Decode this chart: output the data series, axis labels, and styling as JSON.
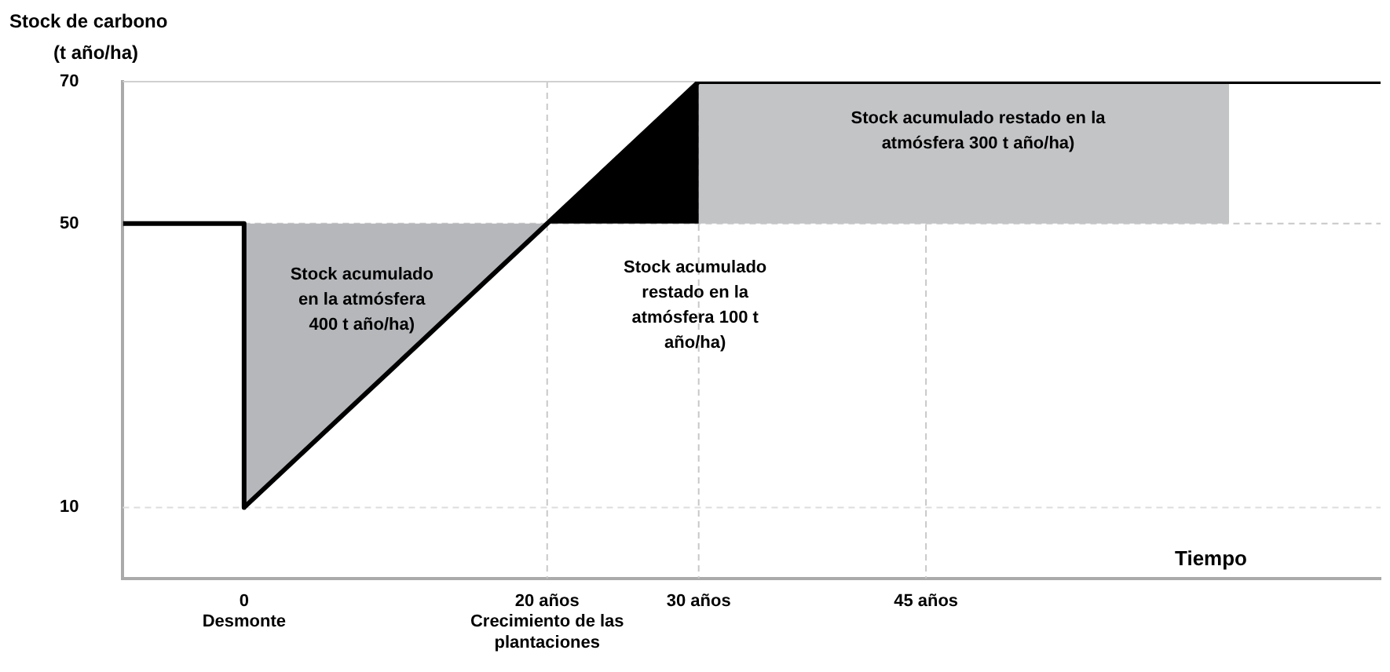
{
  "chart_data": {
    "type": "line",
    "ylabel": "Stock de carbono\n(t año/ha)",
    "xlabel": "Tiempo",
    "xlim": [
      -8,
      75
    ],
    "xticks": [
      {
        "value": 0,
        "label": "0\nDesmonte"
      },
      {
        "value": 20,
        "label": "20 años\nCrecimiento de las\nplantaciones"
      },
      {
        "value": 30,
        "label": "30 años"
      },
      {
        "value": 45,
        "label": "45 años"
      }
    ],
    "ylim": [
      0,
      70
    ],
    "yticks": [
      10,
      50,
      70
    ],
    "grid": false,
    "legend": false,
    "marker": "none",
    "series": [
      {
        "type": "area",
        "color": "#b5b7ba",
        "x": [
          0,
          20,
          0
        ],
        "values": [
          50,
          50,
          10
        ]
      },
      {
        "type": "area",
        "color": "#000000",
        "x": [
          20,
          30,
          30
        ],
        "values": [
          50,
          70,
          50
        ]
      },
      {
        "type": "area",
        "color": "#c3c4c6",
        "x": [
          30,
          65,
          65,
          30
        ],
        "values": [
          70,
          70,
          50,
          50
        ]
      },
      {
        "color": "#000000",
        "x": [
          -8,
          0,
          0,
          30,
          75
        ],
        "values": [
          50,
          50,
          10,
          70,
          70
        ]
      }
    ],
    "ref_lines": [
      {
        "axis": "x",
        "value": 20,
        "color": "#c8c8c8",
        "line_style": "dashed"
      },
      {
        "axis": "x",
        "value": 30,
        "color": "#c8c8c8",
        "line_style": "dashed"
      },
      {
        "axis": "x",
        "value": 45,
        "color": "#c8c8c8",
        "line_style": "dashed"
      },
      {
        "axis": "y",
        "value": 10,
        "color": "#dddddd",
        "line_style": "dashed"
      },
      {
        "axis": "y",
        "value": 50,
        "color": "#c8c8c8",
        "line_style": "dashed"
      },
      {
        "axis": "y",
        "value": 70,
        "color": "#d0d0d0",
        "line_style": "solid"
      }
    ],
    "annotations": [
      "Stock acumulado\nen la atmósfera\n400 t año/ha)",
      "Stock acumulado\nrestado en la\natmósfera 100 t\naño/ha)",
      "Stock acumulado restado en la\natmósfera 300 t año/ha)"
    ]
  }
}
